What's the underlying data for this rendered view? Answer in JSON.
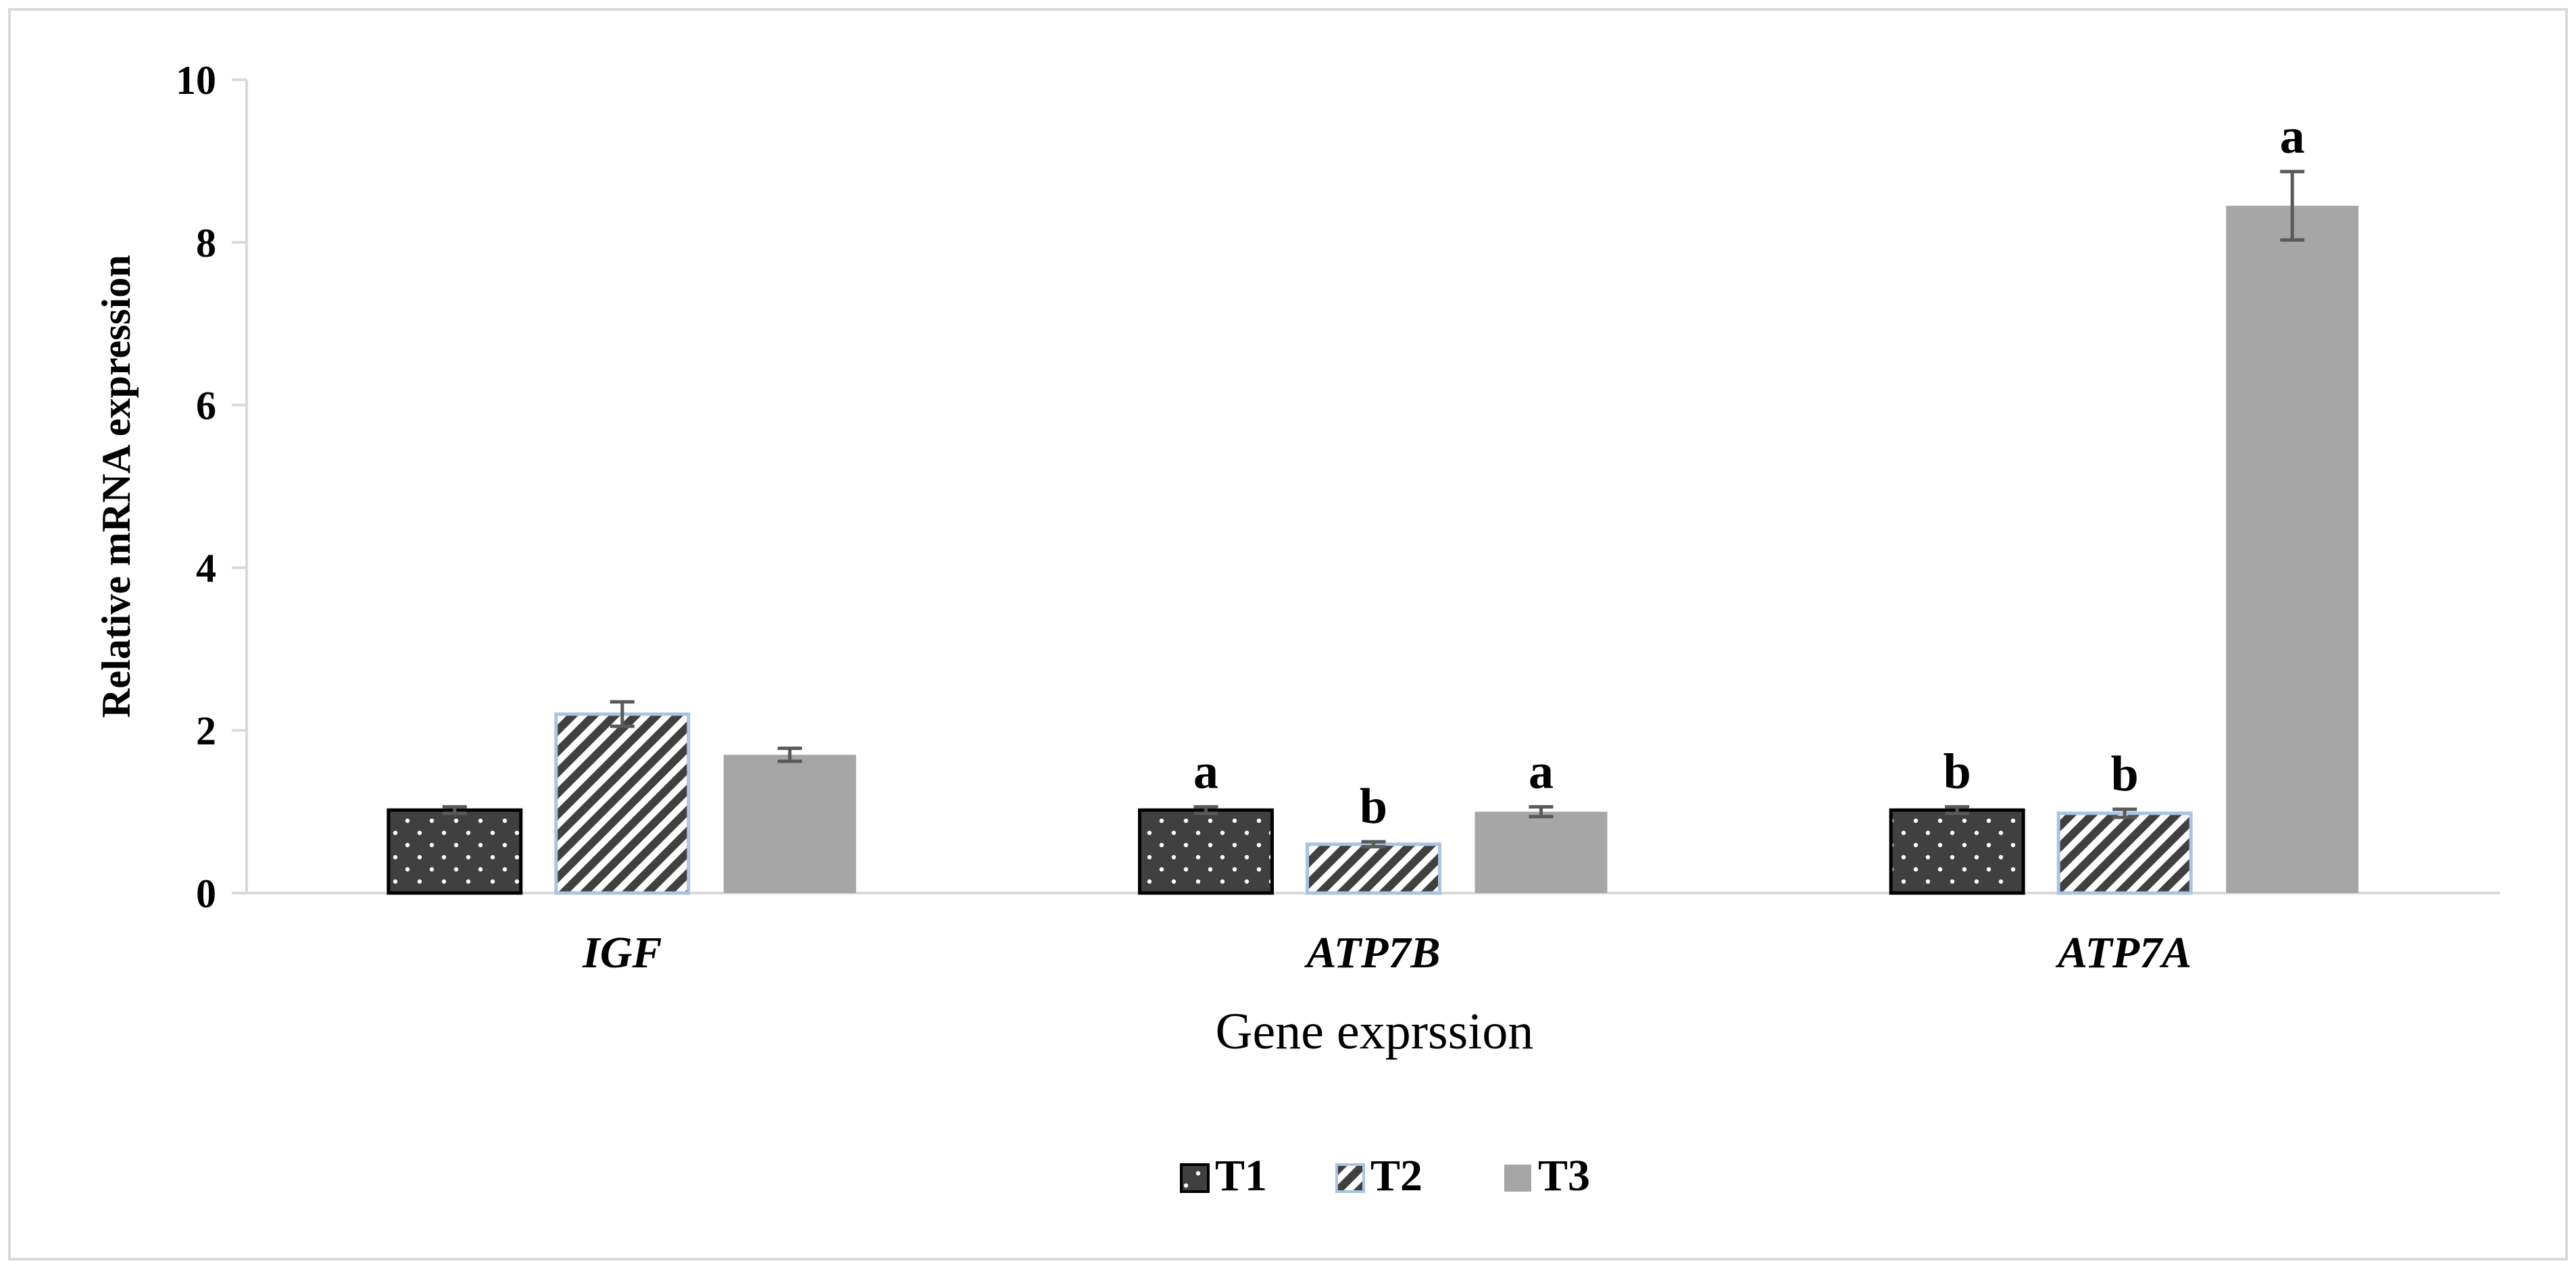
{
  "chart_data": {
    "type": "bar",
    "title": "",
    "xlabel": "Gene exprssion",
    "ylabel": "Relative mRNA expression",
    "categories": [
      "IGF",
      "ATP7B",
      "ATP7A"
    ],
    "ylim": [
      0,
      10
    ],
    "yticks": [
      "0",
      "2",
      "4",
      "6",
      "8",
      "10"
    ],
    "series": [
      {
        "name": "T1",
        "values": [
          1.02,
          1.02,
          1.02
        ],
        "errors": [
          0.04,
          0.04,
          0.04
        ],
        "labels": [
          "",
          "a",
          "b"
        ]
      },
      {
        "name": "T2",
        "values": [
          2.2,
          0.6,
          0.98
        ],
        "errors": [
          0.15,
          0.03,
          0.05
        ],
        "labels": [
          "",
          "b",
          "b"
        ]
      },
      {
        "name": "T3",
        "values": [
          1.7,
          1.0,
          8.45
        ],
        "errors": [
          0.08,
          0.06,
          0.42
        ],
        "labels": [
          "",
          "a",
          "a"
        ]
      }
    ],
    "grid": false,
    "legend_position": "bottom-center",
    "colors": {
      "T1": "#404040",
      "T2_stripe": "#404040",
      "T2_border": "#a9c3e0",
      "T3": "#a6a6a6",
      "axis": "#d9d9d9",
      "error": "#595959",
      "frame": "#d9d9d9"
    },
    "patterns": {
      "T1": "dotted-dark",
      "T2": "diagonal-stripes",
      "T3": "solid-gray"
    }
  }
}
